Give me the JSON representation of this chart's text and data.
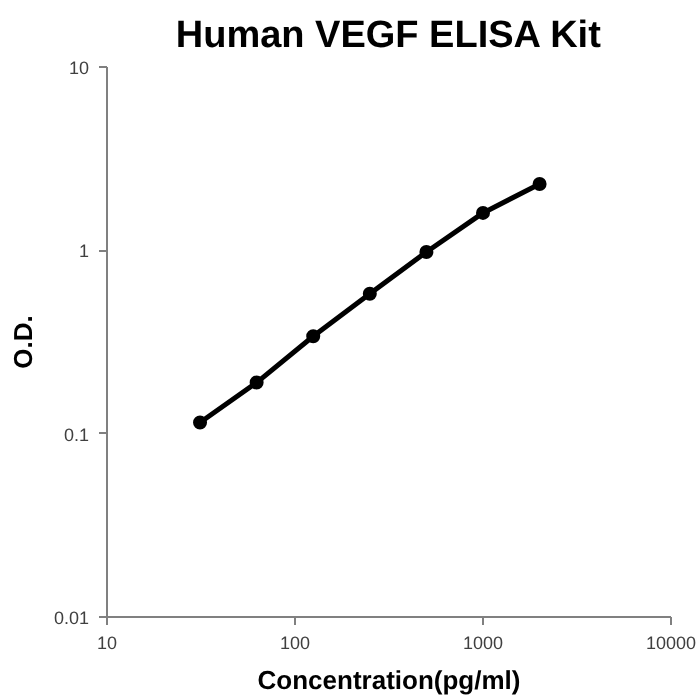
{
  "chart_data": {
    "type": "line",
    "title": "Human VEGF ELISA Kit",
    "xlabel": "Concentration(pg/ml)",
    "ylabel": "O.D.",
    "x": [
      31.25,
      62.5,
      125,
      250,
      500,
      1000,
      2000
    ],
    "series": [
      {
        "color": "#000000",
        "values": [
          0.115,
          0.19,
          0.34,
          0.58,
          0.98,
          1.6,
          2.3
        ]
      }
    ],
    "log": "xy",
    "xlim": [
      10,
      10000
    ],
    "xticks": [
      10,
      100,
      1000,
      10000
    ],
    "ylim": [
      0.01,
      10
    ],
    "yticks": [
      0.01,
      0.1,
      1,
      10
    ],
    "grid": false,
    "marker": "circle",
    "line_style": "solid"
  }
}
